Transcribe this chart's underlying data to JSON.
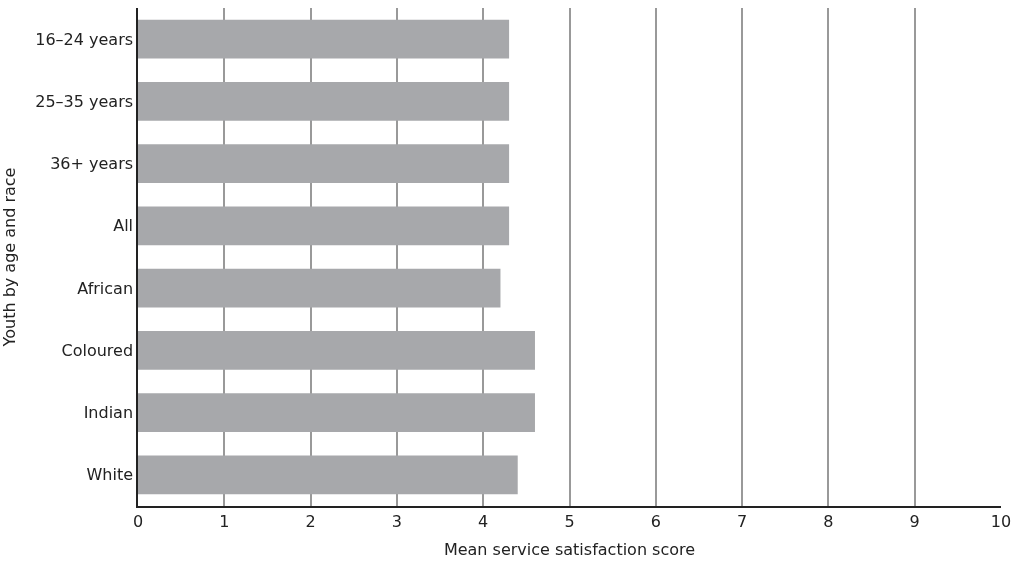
{
  "chart_data": {
    "type": "bar",
    "orientation": "horizontal",
    "xlabel": "Mean service satisfaction score",
    "ylabel": "Youth by age and race",
    "categories": [
      "16–24 years",
      "25–35 years",
      "36+ years",
      "All",
      "African",
      "Coloured",
      "Indian",
      "White"
    ],
    "values": [
      4.3,
      4.3,
      4.3,
      4.3,
      4.2,
      4.6,
      4.6,
      4.4
    ],
    "color": "#a7a8ab",
    "xlim": [
      0,
      10
    ],
    "xticks": [
      0,
      1,
      2,
      3,
      4,
      5,
      6,
      7,
      8,
      9,
      10
    ],
    "grid": "x"
  }
}
